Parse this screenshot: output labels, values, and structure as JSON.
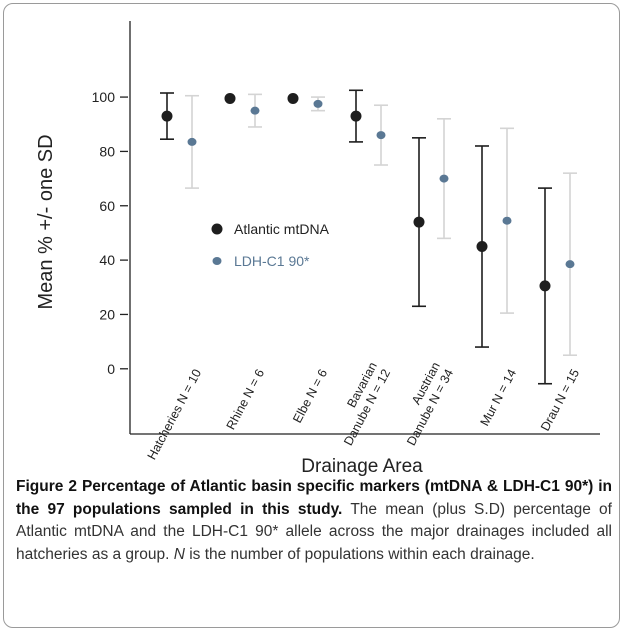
{
  "chart_data": {
    "type": "errorbar",
    "ylabel": "Mean % +/- one SD",
    "xlabel": "Drainage Area",
    "categories": [
      "Hatcheries N = 10",
      "Rhine N = 6",
      "Elbe N = 6",
      "Bavarian\nDanube N = 12",
      "Austrian\nDanube N = 34",
      "Mur N = 14",
      "Drau N = 15"
    ],
    "ylim": [
      -24,
      128
    ],
    "yticks": [
      0,
      20,
      40,
      60,
      80,
      100
    ],
    "grid": false,
    "legend": "center",
    "series": [
      {
        "name": "Atlantic mtDNA",
        "color": "#1e1e1e",
        "error_color": "#1e1e1e",
        "values": [
          93,
          99.5,
          99.5,
          93,
          54,
          45,
          30.5
        ],
        "errors": [
          8.5,
          0,
          0,
          9.5,
          31,
          37,
          36
        ]
      },
      {
        "name": "LDH-C1 90*",
        "color": "#5a7894",
        "error_color": "#d4d4d4",
        "values": [
          83.5,
          95,
          97.5,
          86,
          70,
          54.5,
          38.5
        ],
        "errors": [
          17,
          6,
          2.5,
          11,
          22,
          34,
          33.5
        ]
      }
    ]
  },
  "caption": {
    "label": "Figure 2",
    "title": "Percentage of Atlantic basin specific markers (mtDNA & LDH-C1 90*) in the 97 populations sampled in this study.",
    "body": "The mean (plus S.D) percentage of Atlantic mtDNA and the LDH-C1 90* allele across the major drainages included all hatcheries as a group.",
    "note_symbol": "N",
    "note": "is the number of populations within each drainage."
  }
}
